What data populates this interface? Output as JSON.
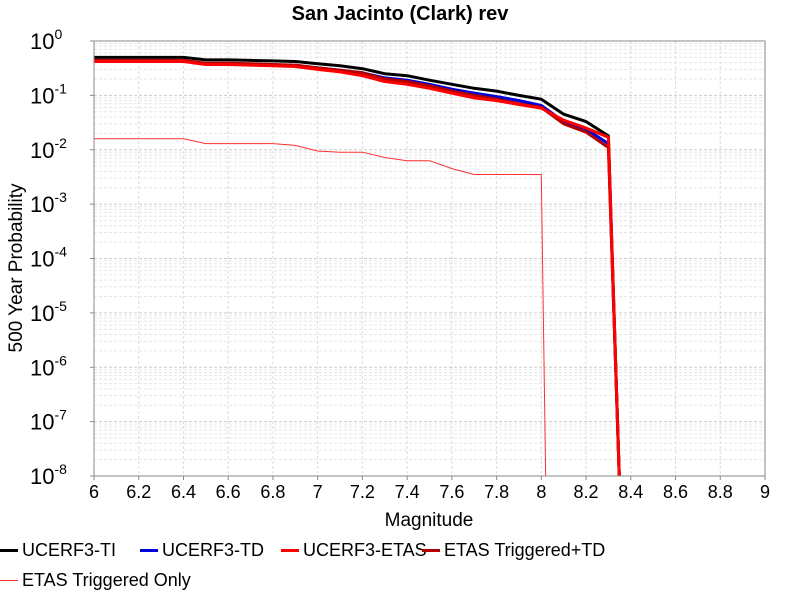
{
  "chart_data": {
    "type": "line",
    "title": "San Jacinto (Clark) rev",
    "xlabel": "Magnitude",
    "ylabel": "500 Year Probability",
    "xlim": [
      6,
      9
    ],
    "ylim": [
      1e-08,
      1
    ],
    "yscale": "log",
    "grid": true,
    "legend_placement": "bottom",
    "x_ticks": [
      "6",
      "6.2",
      "6.4",
      "6.6",
      "6.8",
      "7",
      "7.2",
      "7.4",
      "7.6",
      "7.8",
      "8",
      "8.2",
      "8.4",
      "8.6",
      "8.8",
      "9"
    ],
    "y_ticks": [
      {
        "base": "10",
        "exp": "0"
      },
      {
        "base": "10",
        "exp": "-1"
      },
      {
        "base": "10",
        "exp": "-2"
      },
      {
        "base": "10",
        "exp": "-3"
      },
      {
        "base": "10",
        "exp": "-4"
      },
      {
        "base": "10",
        "exp": "-5"
      },
      {
        "base": "10",
        "exp": "-6"
      },
      {
        "base": "10",
        "exp": "-7"
      },
      {
        "base": "10",
        "exp": "-8"
      }
    ],
    "series": [
      {
        "name": "UCERF3-TI",
        "color": "#000000",
        "width": 3,
        "x": [
          6.0,
          6.1,
          6.2,
          6.3,
          6.4,
          6.5,
          6.6,
          6.7,
          6.8,
          6.9,
          7.0,
          7.1,
          7.2,
          7.3,
          7.4,
          7.5,
          7.6,
          7.7,
          7.8,
          7.9,
          8.0,
          8.1,
          8.2,
          8.3,
          8.35
        ],
        "y": [
          0.5,
          0.5,
          0.5,
          0.5,
          0.5,
          0.45,
          0.45,
          0.44,
          0.43,
          0.42,
          0.38,
          0.35,
          0.31,
          0.25,
          0.23,
          0.19,
          0.16,
          0.135,
          0.12,
          0.1,
          0.085,
          0.045,
          0.033,
          0.018,
          1e-09
        ]
      },
      {
        "name": "UCERF3-TD",
        "color": "#0000dd",
        "width": 3,
        "x": [
          6.0,
          6.1,
          6.2,
          6.3,
          6.4,
          6.5,
          6.6,
          6.7,
          6.8,
          6.9,
          7.0,
          7.1,
          7.2,
          7.3,
          7.4,
          7.5,
          7.6,
          7.7,
          7.8,
          7.9,
          8.0,
          8.1,
          8.2,
          8.3,
          8.35
        ],
        "y": [
          0.43,
          0.43,
          0.43,
          0.43,
          0.43,
          0.38,
          0.38,
          0.37,
          0.36,
          0.35,
          0.32,
          0.29,
          0.26,
          0.21,
          0.19,
          0.16,
          0.13,
          0.11,
          0.095,
          0.08,
          0.065,
          0.033,
          0.024,
          0.013,
          1e-09
        ]
      },
      {
        "name": "UCERF3-ETAS",
        "color": "#ff0000",
        "width": 3,
        "x": [
          6.0,
          6.1,
          6.2,
          6.3,
          6.4,
          6.5,
          6.6,
          6.7,
          6.8,
          6.9,
          7.0,
          7.1,
          7.2,
          7.3,
          7.4,
          7.5,
          7.6,
          7.7,
          7.8,
          7.9,
          8.0,
          8.1,
          8.2,
          8.3,
          8.35
        ],
        "y": [
          0.42,
          0.42,
          0.42,
          0.42,
          0.42,
          0.37,
          0.37,
          0.36,
          0.35,
          0.34,
          0.3,
          0.27,
          0.23,
          0.18,
          0.16,
          0.135,
          0.11,
          0.09,
          0.08,
          0.068,
          0.058,
          0.035,
          0.025,
          0.017,
          1e-09
        ]
      },
      {
        "name": "ETAS Triggered+TD",
        "color": "#b00000",
        "width": 3,
        "x": [
          6.0,
          6.1,
          6.2,
          6.3,
          6.4,
          6.5,
          6.6,
          6.7,
          6.8,
          6.9,
          7.0,
          7.1,
          7.2,
          7.3,
          7.4,
          7.5,
          7.6,
          7.7,
          7.8,
          7.9,
          8.0,
          8.1,
          8.2,
          8.3,
          8.35
        ],
        "y": [
          0.44,
          0.44,
          0.44,
          0.44,
          0.44,
          0.39,
          0.39,
          0.38,
          0.37,
          0.36,
          0.32,
          0.29,
          0.26,
          0.2,
          0.18,
          0.15,
          0.12,
          0.1,
          0.085,
          0.07,
          0.06,
          0.03,
          0.021,
          0.011,
          1e-09
        ]
      },
      {
        "name": "ETAS Triggered Only",
        "color": "#ff3030",
        "width": 1,
        "x": [
          6.0,
          6.1,
          6.2,
          6.3,
          6.4,
          6.5,
          6.6,
          6.7,
          6.8,
          6.9,
          7.0,
          7.1,
          7.2,
          7.3,
          7.4,
          7.5,
          7.6,
          7.7,
          7.8,
          7.9,
          8.0,
          8.02
        ],
        "y": [
          0.016,
          0.016,
          0.016,
          0.016,
          0.016,
          0.013,
          0.013,
          0.013,
          0.013,
          0.012,
          0.0095,
          0.009,
          0.009,
          0.0072,
          0.0063,
          0.0063,
          0.0045,
          0.0035,
          0.0035,
          0.0035,
          0.0035,
          1e-09
        ]
      }
    ]
  }
}
